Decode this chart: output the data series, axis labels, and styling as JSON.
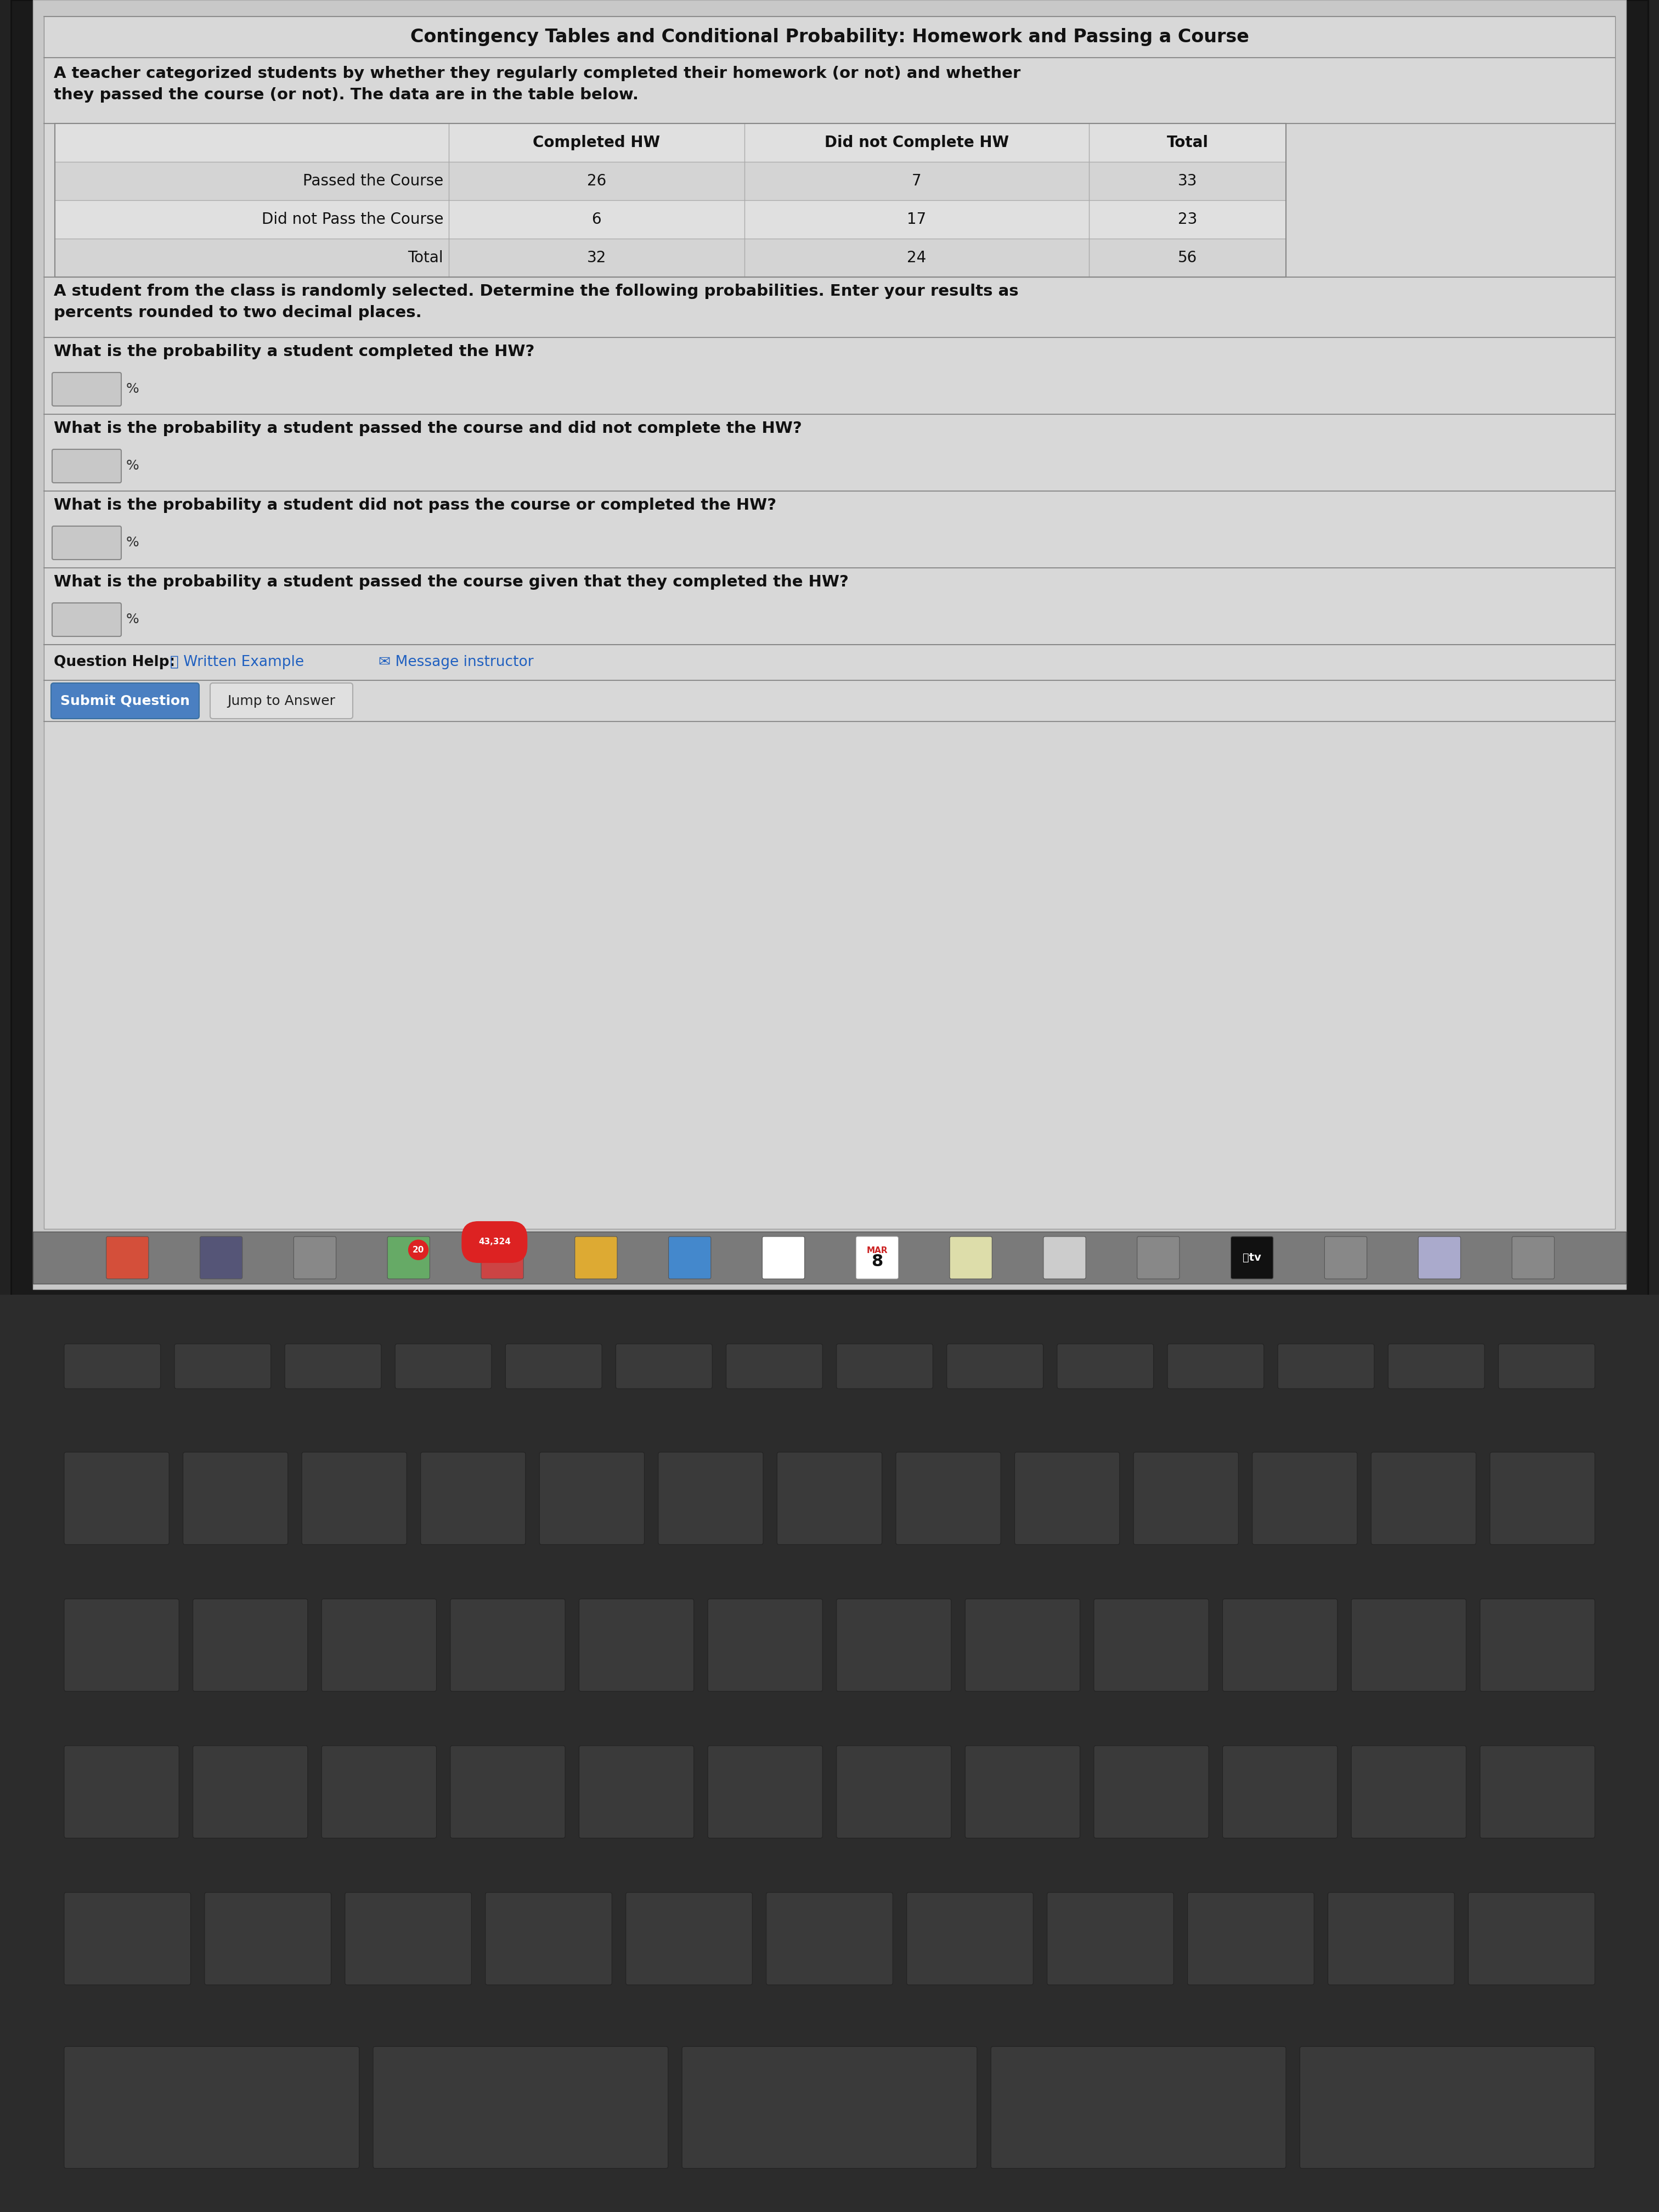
{
  "title": "Contingency Tables and Conditional Probability: Homework and Passing a Course",
  "description": "A teacher categorized students by whether they regularly completed their homework (or not) and whether\nthey passed the course (or not). The data are in the table below.",
  "table_headers": [
    "",
    "Completed HW",
    "Did not Complete HW",
    "Total"
  ],
  "table_rows": [
    [
      "Passed the Course",
      "26",
      "7",
      "33"
    ],
    [
      "Did not Pass the Course",
      "6",
      "17",
      "23"
    ],
    [
      "Total",
      "32",
      "24",
      "56"
    ]
  ],
  "instruction": "A student from the class is randomly selected. Determine the following probabilities. Enter your results as\npercents rounded to two decimal places.",
  "questions": [
    "What is the probability a student completed the HW?",
    "What is the probability a student passed the course and did not complete the HW?",
    "What is the probability a student did not pass the course or completed the HW?",
    "What is the probability a student passed the course given that they completed the HW?"
  ],
  "question_help_text": "Question Help:",
  "written_example": "Written Example",
  "message_instructor": "Message instructor",
  "submit_btn": "Submit Question",
  "jump_btn": "Jump to Answer",
  "screen_bg": "#c8c8c8",
  "content_bg": "#d6d6d6",
  "section_bg": "#d8d8d8",
  "table_even_bg": "#dcdcdc",
  "table_odd_bg": "#d0d0d0",
  "submit_btn_color": "#4a7fc1",
  "link_color": "#2060c0",
  "dock_bg": "#7a7a7a",
  "keyboard_bg": "#2c2c2c",
  "bezel_bg": "#1a1a1a",
  "laptop_body_bg": "#222222"
}
